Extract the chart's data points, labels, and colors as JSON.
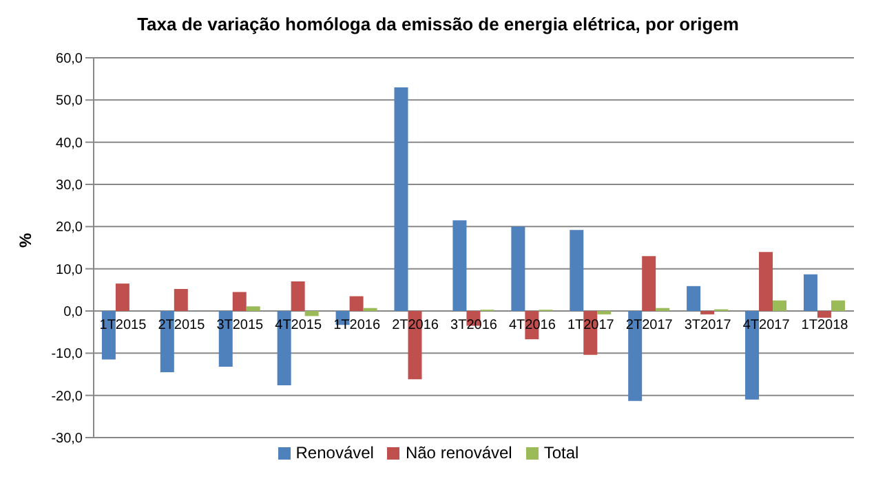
{
  "chart_data": {
    "type": "bar",
    "title": "Taxa de variação homóloga da emissão  de energia elétrica, por origem",
    "ylabel": "%",
    "categories": [
      "1T2015",
      "2T2015",
      "3T2015",
      "4T2015",
      "1T2016",
      "2T2016",
      "3T2016",
      "4T2016",
      "1T2017",
      "2T2017",
      "3T2017",
      "4T2017",
      "1T2018"
    ],
    "series": [
      {
        "name": "Renovável",
        "color": "#4f81bd",
        "values": [
          -11.5,
          -14.5,
          -13.2,
          -17.6,
          -3.3,
          53.0,
          21.5,
          20.0,
          19.2,
          -21.3,
          5.9,
          -21.0,
          8.7
        ]
      },
      {
        "name": "Não renovável",
        "color": "#c0504d",
        "values": [
          6.5,
          5.2,
          4.5,
          7.0,
          3.5,
          -16.2,
          -3.5,
          -6.7,
          -10.4,
          13.0,
          -0.8,
          14.0,
          -1.6
        ]
      },
      {
        "name": "Total",
        "color": "#9bbb59",
        "values": [
          0.0,
          0.0,
          1.1,
          -1.2,
          0.7,
          0.0,
          0.3,
          0.3,
          -0.8,
          0.7,
          0.4,
          2.5,
          2.5
        ]
      }
    ],
    "ylim": [
      -30,
      60
    ],
    "yticks": [
      {
        "value": -30,
        "label": "-30,0"
      },
      {
        "value": -20,
        "label": "-20,0"
      },
      {
        "value": -10,
        "label": "-10,0"
      },
      {
        "value": 0,
        "label": "0,0"
      },
      {
        "value": 10,
        "label": "10,0"
      },
      {
        "value": 20,
        "label": "20,0"
      },
      {
        "value": 30,
        "label": "30,0"
      },
      {
        "value": 40,
        "label": "40,0"
      },
      {
        "value": 50,
        "label": "50,0"
      },
      {
        "value": 60,
        "label": "60,0"
      }
    ],
    "grid": "y",
    "legend": "bottom"
  }
}
